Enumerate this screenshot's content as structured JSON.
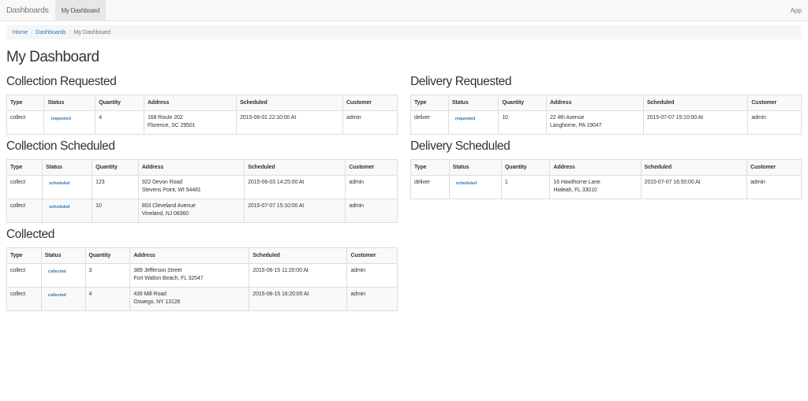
{
  "nav": {
    "brand": "Dashboards",
    "active": "My Dashboard",
    "right": "App"
  },
  "breadcrumb": [
    "Home",
    "Dashboards",
    "My Dashboard"
  ],
  "title": "My Dashboard",
  "columns": [
    "Type",
    "Status",
    "Quantity",
    "Address",
    "Scheduled",
    "Customer"
  ],
  "left": [
    {
      "title": "Collection Requested",
      "rows": [
        [
          "collect",
          "requested",
          "4",
          "168 Route 202",
          "Florence, SC 29501",
          "2015-06-01 22:10:00 At",
          "admin"
        ]
      ]
    },
    {
      "title": "Collection Scheduled",
      "rows": [
        [
          "collect",
          "scheduled",
          "123",
          "922 Devon Road",
          "Stevens Point, WI 54481",
          "2015-06-03 14:25:00 At",
          "admin"
        ],
        [
          "collect",
          "scheduled",
          "10",
          "803 Cleveland Avenue",
          "Vineland, NJ 08360",
          "2015-07-07 15:10:00 At",
          "admin"
        ]
      ]
    },
    {
      "title": "Collected",
      "rows": [
        [
          "collect",
          "collected",
          "3",
          "389 Jefferson Street",
          "Fort Walton Beach, FL 32547",
          "2015-06-15 11:20:00 At",
          "admin"
        ],
        [
          "collect",
          "collected",
          "4",
          "439 Mill Road",
          "Oswego, NY 13126",
          "2015-06-15 16:20:00 At",
          "admin"
        ]
      ]
    }
  ],
  "right": [
    {
      "title": "Delivery Requested",
      "rows": [
        [
          "deliver",
          "requested",
          "10",
          "22 4th Avenue",
          "Langhorne, PA 19047",
          "2015-07-07 15:10:00 At",
          "admin"
        ]
      ]
    },
    {
      "title": "Delivery Scheduled",
      "rows": [
        [
          "deliver",
          "scheduled",
          "1",
          "16 Hawthorne Lane",
          "Hialeah, FL 33010",
          "2015-07-07 16:50:00 At",
          "admin"
        ]
      ]
    }
  ]
}
